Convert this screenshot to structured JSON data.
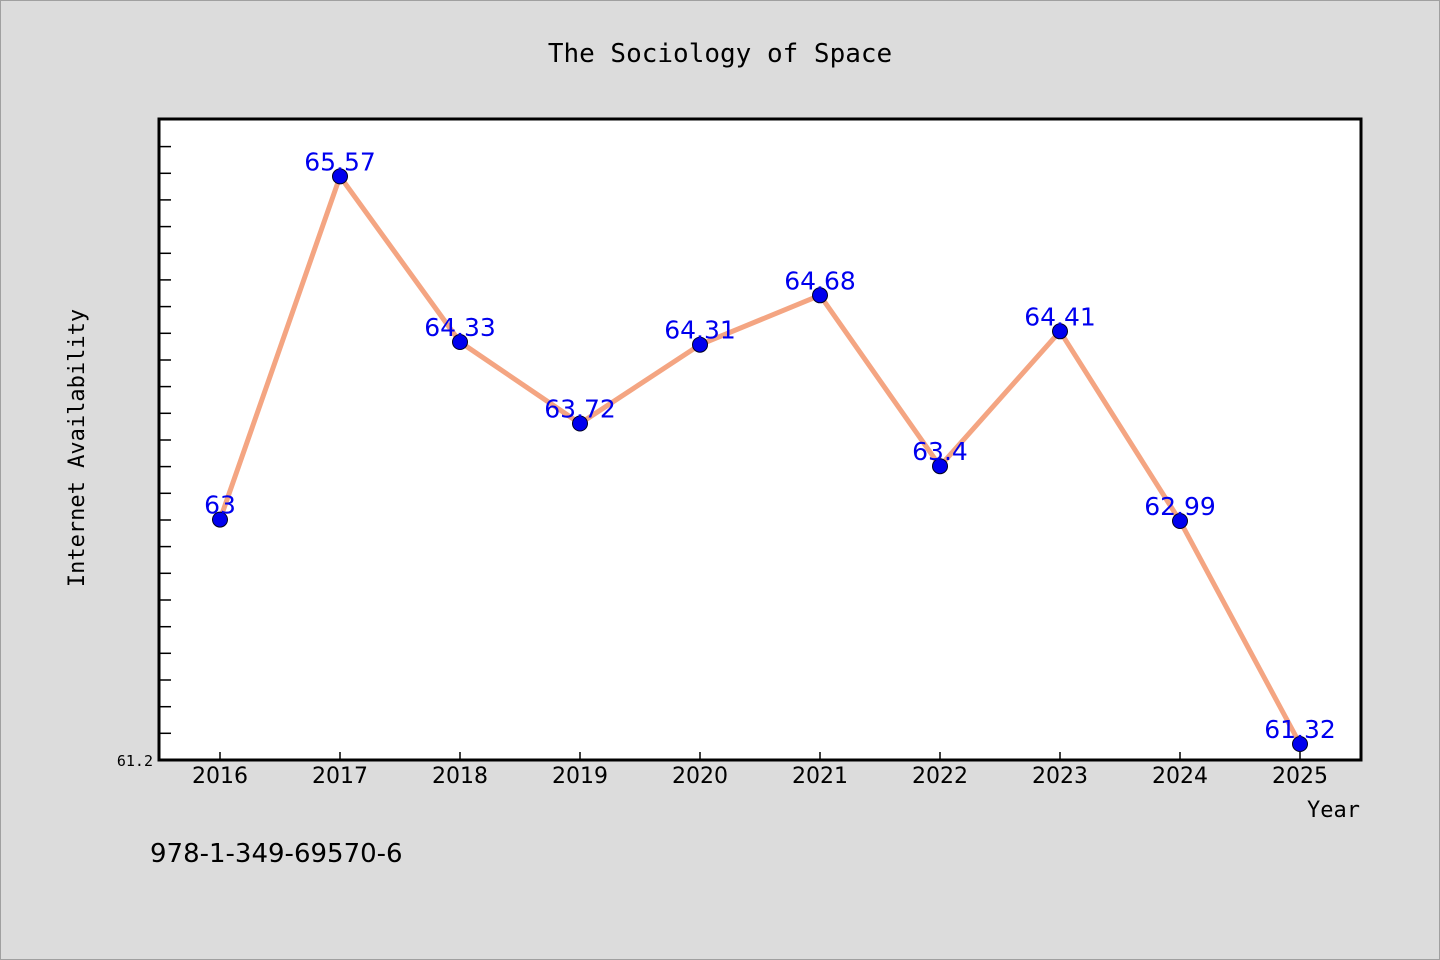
{
  "chart_data": {
    "type": "line",
    "title": "The Sociology of Space",
    "xlabel": "Year",
    "ylabel": "Internet Availability",
    "categories": [
      "2016",
      "2017",
      "2018",
      "2019",
      "2020",
      "2021",
      "2022",
      "2023",
      "2024",
      "2025"
    ],
    "series": [
      {
        "values": [
          63,
          65.57,
          64.33,
          63.72,
          64.31,
          64.68,
          63.4,
          64.41,
          62.99,
          61.32
        ],
        "labels": [
          "63",
          "65.57",
          "64.33",
          "63.72",
          "64.31",
          "64.68",
          "63.4",
          "64.41",
          "62.99",
          "61.32"
        ],
        "line_color": "#f4a582",
        "marker_color": "#0000ee"
      }
    ],
    "ylim": [
      61.2,
      66.0
    ],
    "y_min_label": "61.2",
    "grid": false,
    "label_color": "#0000ee"
  },
  "footer": {
    "isbn": "978-1-349-69570-6"
  }
}
